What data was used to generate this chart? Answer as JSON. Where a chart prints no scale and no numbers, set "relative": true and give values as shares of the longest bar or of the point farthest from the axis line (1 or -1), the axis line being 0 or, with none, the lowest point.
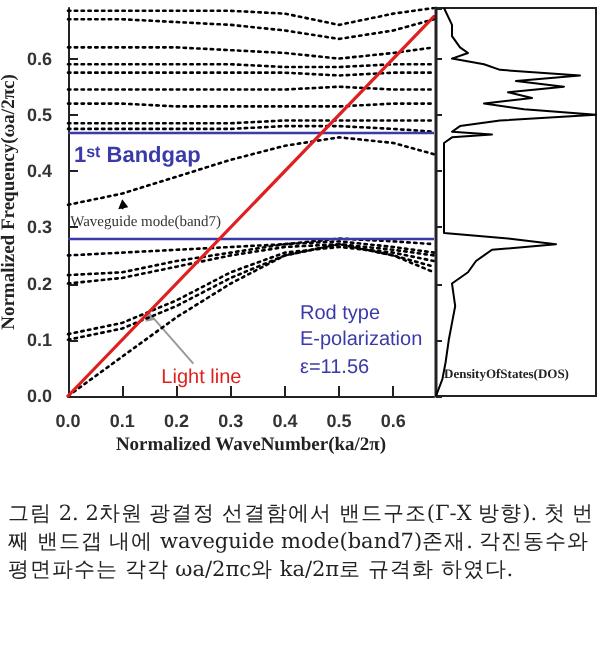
{
  "chart_data": [
    {
      "type": "line",
      "xlabel": "Normalized WaveNumber(ka/2π)",
      "ylabel": "Normalized Frequency(ωa/2πc)",
      "xlim": [
        0,
        0.675
      ],
      "ylim": [
        0,
        0.69
      ],
      "xticks": [
        {
          "value": 0,
          "label": "0.0"
        },
        0.1,
        0.2,
        0.3,
        0.4,
        0.5,
        0.6
      ],
      "yticks": [
        {
          "value": 0,
          "label": "0.0"
        },
        0.1,
        0.2,
        0.3,
        0.4,
        0.5,
        0.6
      ],
      "grid": false,
      "marker": "none",
      "line_style": "dotted",
      "x": [
        0,
        0.1,
        0.2,
        0.3,
        0.4,
        0.5,
        0.6,
        0.675
      ],
      "series": [
        {
          "color": "#000000",
          "values": [
            0,
            0.07,
            0.14,
            0.2,
            0.25,
            0.27,
            0.25,
            0.22
          ]
        },
        {
          "color": "#000000",
          "values": [
            0.1,
            0.12,
            0.16,
            0.21,
            0.25,
            0.27,
            0.25,
            0.23
          ]
        },
        {
          "color": "#000000",
          "values": [
            0.11,
            0.13,
            0.17,
            0.22,
            0.255,
            0.265,
            0.255,
            0.24
          ]
        },
        {
          "color": "#000000",
          "values": [
            0.2,
            0.21,
            0.23,
            0.25,
            0.265,
            0.27,
            0.26,
            0.25
          ]
        },
        {
          "color": "#000000",
          "values": [
            0.215,
            0.22,
            0.24,
            0.255,
            0.27,
            0.275,
            0.265,
            0.255
          ]
        },
        {
          "color": "#000000",
          "values": [
            0.25,
            0.255,
            0.26,
            0.265,
            0.27,
            0.28,
            0.275,
            0.27
          ]
        },
        {
          "color": "#000000",
          "values": [
            0.34,
            0.36,
            0.39,
            0.42,
            0.445,
            0.46,
            0.45,
            0.43
          ]
        },
        {
          "color": "#000000",
          "values": [
            0.475,
            0.475,
            0.475,
            0.475,
            0.48,
            0.48,
            0.475,
            0.47
          ]
        },
        {
          "color": "#000000",
          "values": [
            0.485,
            0.485,
            0.485,
            0.485,
            0.49,
            0.49,
            0.49,
            0.49
          ]
        },
        {
          "color": "#000000",
          "values": [
            0.52,
            0.52,
            0.515,
            0.515,
            0.515,
            0.515,
            0.52,
            0.52
          ]
        },
        {
          "color": "#000000",
          "values": [
            0.545,
            0.545,
            0.545,
            0.545,
            0.545,
            0.55,
            0.545,
            0.545
          ]
        },
        {
          "color": "#000000",
          "values": [
            0.575,
            0.575,
            0.575,
            0.575,
            0.575,
            0.57,
            0.575,
            0.575
          ]
        },
        {
          "color": "#000000",
          "values": [
            0.59,
            0.59,
            0.59,
            0.59,
            0.585,
            0.585,
            0.59,
            0.59
          ]
        },
        {
          "color": "#000000",
          "values": [
            0.62,
            0.62,
            0.62,
            0.615,
            0.61,
            0.6,
            0.61,
            0.62
          ]
        },
        {
          "color": "#000000",
          "values": [
            0.67,
            0.67,
            0.665,
            0.66,
            0.65,
            0.635,
            0.65,
            0.67
          ]
        },
        {
          "color": "#000000",
          "values": [
            0.685,
            0.685,
            0.685,
            0.685,
            0.68,
            0.66,
            0.68,
            0.69
          ]
        },
        {
          "color": "#e02020",
          "line_style": "solid",
          "x": [
            0,
            0.675
          ],
          "values": [
            0,
            0.675
          ]
        }
      ],
      "ref_lines": [
        {
          "axis": "y",
          "value": 0.466,
          "color": "#3a3aa8"
        },
        {
          "axis": "y",
          "value": 0.285,
          "color": "#3a3aa8"
        }
      ],
      "annotations": [
        "1$^{st}$ Bandgap",
        {
          "text": "Waveguide mode(band7)",
          "x": 0.1,
          "y": 0.35
        },
        {
          "text": "Light line",
          "x": 0.15,
          "y": 0.15
        },
        "Rod type",
        "E-polarization",
        "ε=11.56",
        "그림 2. 2차원 광결정 선결함에서 밴드구조(Γ-X 방향). 첫 번째 밴드갭 내에 waveguide mode(band7)존재. 각진동수와 평면파수는 각각 ωa/2πc와 ka/2π로 규격화 하였다."
      ]
    },
    {
      "type": "line",
      "orientation": "horizontal",
      "relative": true,
      "tick_labels": false,
      "ylim": [
        0,
        0.69
      ],
      "marker": "none",
      "line_style": "solid",
      "color": "#000000",
      "x": [
        0.69,
        0.66,
        0.64,
        0.62,
        0.61,
        0.6,
        0.59,
        0.58,
        0.57,
        0.56,
        0.55,
        0.54,
        0.53,
        0.52,
        0.51,
        0.5,
        0.49,
        0.48,
        0.47,
        0.465,
        0.46,
        0.45,
        0.42,
        0.38,
        0.33,
        0.29,
        0.28,
        0.27,
        0.26,
        0.25,
        0.24,
        0.22,
        0.2,
        0.16,
        0.13,
        0.1,
        0.06,
        0.03,
        0
      ],
      "values": [
        0.05,
        0.1,
        0.1,
        0.15,
        0.2,
        0.1,
        0.3,
        0.4,
        0.9,
        0.5,
        0.8,
        0.45,
        0.6,
        0.3,
        0.55,
        1,
        0.4,
        0.15,
        0.1,
        0.35,
        0.1,
        0.05,
        0.05,
        0.05,
        0.05,
        0.05,
        0.45,
        0.75,
        0.35,
        0.3,
        0.25,
        0.2,
        0.1,
        0.12,
        0.1,
        0.08,
        0.06,
        0.04,
        0
      ],
      "annotations": [
        "DensityOfStates(DOS)"
      ]
    }
  ]
}
